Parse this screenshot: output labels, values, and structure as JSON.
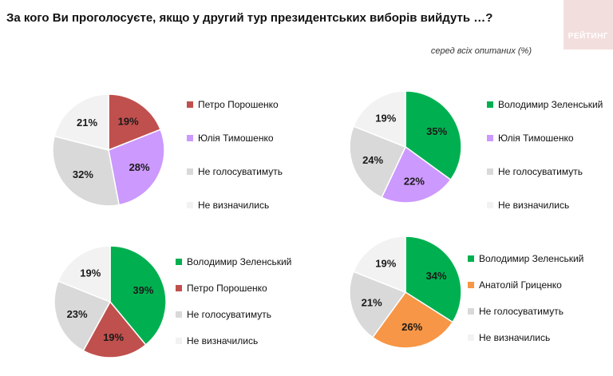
{
  "header": {
    "title": "За кого Ви проголосуєте, якщо у другий тур президентських виборів вийдуть …?",
    "subtitle": "серед всіх опитаних (%)",
    "logo_text": "РЕЙТИНГ"
  },
  "colors": {
    "Петро Порошенко": "#c0504d",
    "Юлія Тимошенко": "#cc99ff",
    "Не голосуватимуть": "#d9d9d9",
    "Не визначились": "#f2f2f2",
    "Володимир Зеленський": "#00b050",
    "Анатолій Гриценко": "#f79646"
  },
  "chart_data": [
    {
      "type": "pie",
      "categories": [
        "Петро Порошенко",
        "Юлія Тимошенко",
        "Не голосуватимуть",
        "Не визначились"
      ],
      "values": [
        19,
        28,
        32,
        21
      ],
      "value_labels": [
        "19%",
        "28%",
        "32%",
        "21%"
      ]
    },
    {
      "type": "pie",
      "categories": [
        "Володимир Зеленський",
        "Юлія Тимошенко",
        "Не голосуватимуть",
        "Не визначились"
      ],
      "values": [
        35,
        22,
        24,
        19
      ],
      "value_labels": [
        "35%",
        "22%",
        "24%",
        "19%"
      ]
    },
    {
      "type": "pie",
      "categories": [
        "Володимир Зеленський",
        "Петро Порошенко",
        "Не голосуватимуть",
        "Не визначились"
      ],
      "values": [
        39,
        19,
        23,
        19
      ],
      "value_labels": [
        "39%",
        "19%",
        "23%",
        "19%"
      ]
    },
    {
      "type": "pie",
      "categories": [
        "Володимир Зеленський",
        "Анатолій Гриценко",
        "Не голосуватимуть",
        "Не визначились"
      ],
      "values": [
        34,
        26,
        21,
        19
      ],
      "value_labels": [
        "34%",
        "26%",
        "21%",
        "19%"
      ]
    }
  ]
}
